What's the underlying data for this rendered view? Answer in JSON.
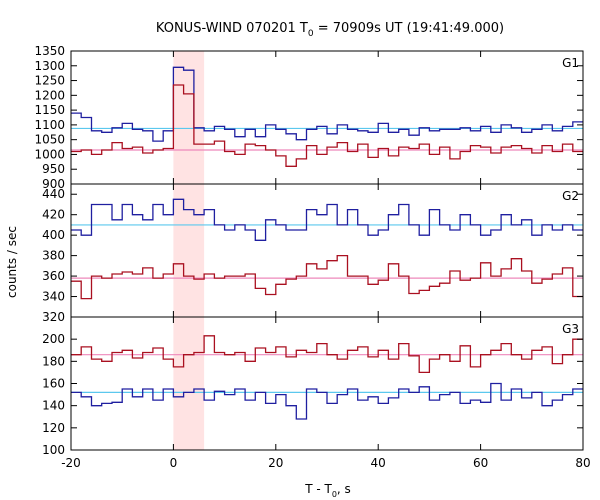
{
  "chart_data": {
    "type": "line",
    "title": {
      "prefix": "KONUS-WIND 070201 T",
      "sub": "0",
      "suffix": " = 70909s UT (19:41:49.000)"
    },
    "ylabel": "counts / sec",
    "xlabel": {
      "prefix": "T - T",
      "sub": "0",
      "suffix": ", s"
    },
    "xlim": [
      -20,
      80
    ],
    "xticks": [
      -20,
      0,
      20,
      40,
      60,
      80
    ],
    "highlight": {
      "x": [
        0,
        6
      ],
      "color": "#ffe3e3"
    },
    "panels": [
      {
        "name": "G1",
        "ylim": [
          900,
          1350
        ],
        "yticks": [
          900,
          950,
          1000,
          1050,
          1100,
          1150,
          1200,
          1250,
          1300,
          1350
        ],
        "series": [
          {
            "color": "#1f1fa0",
            "x": [
              -20,
              -18,
              -16,
              -14,
              -12,
              -10,
              -8,
              -6,
              -4,
              -2,
              0,
              2,
              4,
              6,
              8,
              10,
              12,
              14,
              16,
              18,
              20,
              22,
              24,
              26,
              28,
              30,
              32,
              34,
              36,
              38,
              40,
              42,
              44,
              46,
              48,
              50,
              52,
              54,
              56,
              58,
              60,
              62,
              64,
              66,
              68,
              70,
              72,
              74,
              76,
              78,
              80
            ],
            "y": [
              1140,
              1125,
              1080,
              1075,
              1090,
              1105,
              1085,
              1080,
              1045,
              1080,
              1295,
              1285,
              1090,
              1080,
              1095,
              1085,
              1060,
              1085,
              1060,
              1100,
              1085,
              1070,
              1050,
              1085,
              1095,
              1070,
              1100,
              1085,
              1080,
              1075,
              1105,
              1075,
              1085,
              1065,
              1090,
              1080,
              1085,
              1085,
              1090,
              1080,
              1095,
              1075,
              1100,
              1090,
              1075,
              1085,
              1100,
              1080,
              1095,
              1110,
              1110
            ]
          },
          {
            "color": "#aa1020",
            "x": [
              -20,
              -18,
              -16,
              -14,
              -12,
              -10,
              -8,
              -6,
              -4,
              -2,
              0,
              2,
              4,
              6,
              8,
              10,
              12,
              14,
              16,
              18,
              20,
              22,
              24,
              26,
              28,
              30,
              32,
              34,
              36,
              38,
              40,
              42,
              44,
              46,
              48,
              50,
              52,
              54,
              56,
              58,
              60,
              62,
              64,
              66,
              68,
              70,
              72,
              74,
              76,
              78,
              80
            ],
            "y": [
              1010,
              1015,
              1000,
              1015,
              1040,
              1020,
              1025,
              1005,
              1015,
              1020,
              1235,
              1205,
              1035,
              1035,
              1045,
              1010,
              1000,
              1035,
              1030,
              1015,
              995,
              960,
              985,
              1030,
              1000,
              1025,
              1040,
              1010,
              1035,
              990,
              1020,
              995,
              1025,
              1020,
              1035,
              1000,
              1025,
              985,
              1010,
              1030,
              1025,
              1005,
              1025,
              1030,
              1020,
              1005,
              1030,
              1010,
              1035,
              1010,
              1010
            ]
          }
        ],
        "refs": [
          {
            "y": 1088,
            "color": "#5bc8ee"
          },
          {
            "y": 1015,
            "color": "#ee88bb"
          }
        ]
      },
      {
        "name": "G2",
        "ylim": [
          320,
          450
        ],
        "yticks": [
          320,
          340,
          360,
          380,
          400,
          420,
          440
        ],
        "series": [
          {
            "color": "#1f1fa0",
            "x": [
              -20,
              -18,
              -16,
              -14,
              -12,
              -10,
              -8,
              -6,
              -4,
              -2,
              0,
              2,
              4,
              6,
              8,
              10,
              12,
              14,
              16,
              18,
              20,
              22,
              24,
              26,
              28,
              30,
              32,
              34,
              36,
              38,
              40,
              42,
              44,
              46,
              48,
              50,
              52,
              54,
              56,
              58,
              60,
              62,
              64,
              66,
              68,
              70,
              72,
              74,
              76,
              78,
              80
            ],
            "y": [
              405,
              400,
              430,
              430,
              415,
              430,
              420,
              415,
              430,
              420,
              435,
              425,
              420,
              425,
              410,
              405,
              410,
              405,
              395,
              415,
              410,
              405,
              405,
              425,
              420,
              430,
              410,
              425,
              410,
              400,
              405,
              420,
              430,
              410,
              400,
              425,
              410,
              405,
              420,
              410,
              400,
              405,
              420,
              410,
              415,
              400,
              410,
              405,
              410,
              405,
              405
            ]
          },
          {
            "color": "#aa1020",
            "x": [
              -20,
              -18,
              -16,
              -14,
              -12,
              -10,
              -8,
              -6,
              -4,
              -2,
              0,
              2,
              4,
              6,
              8,
              10,
              12,
              14,
              16,
              18,
              20,
              22,
              24,
              26,
              28,
              30,
              32,
              34,
              36,
              38,
              40,
              42,
              44,
              46,
              48,
              50,
              52,
              54,
              56,
              58,
              60,
              62,
              64,
              66,
              68,
              70,
              72,
              74,
              76,
              78,
              80
            ],
            "y": [
              355,
              338,
              360,
              358,
              362,
              364,
              362,
              368,
              358,
              362,
              372,
              360,
              357,
              362,
              358,
              360,
              360,
              362,
              348,
              342,
              352,
              357,
              360,
              372,
              367,
              375,
              380,
              360,
              360,
              352,
              356,
              372,
              360,
              343,
              346,
              350,
              353,
              365,
              356,
              358,
              373,
              360,
              367,
              377,
              365,
              353,
              357,
              362,
              368,
              340,
              340
            ]
          }
        ],
        "refs": [
          {
            "y": 410,
            "color": "#5bc8ee"
          },
          {
            "y": 358,
            "color": "#ee88bb"
          }
        ]
      },
      {
        "name": "G3",
        "ylim": [
          100,
          220
        ],
        "yticks": [
          100,
          120,
          140,
          160,
          180,
          200
        ],
        "series": [
          {
            "color": "#1f1fa0",
            "x": [
              -20,
              -18,
              -16,
              -14,
              -12,
              -10,
              -8,
              -6,
              -4,
              -2,
              0,
              2,
              4,
              6,
              8,
              10,
              12,
              14,
              16,
              18,
              20,
              22,
              24,
              26,
              28,
              30,
              32,
              34,
              36,
              38,
              40,
              42,
              44,
              46,
              48,
              50,
              52,
              54,
              56,
              58,
              60,
              62,
              64,
              66,
              68,
              70,
              72,
              74,
              76,
              78,
              80
            ],
            "y": [
              152,
              148,
              140,
              142,
              143,
              155,
              148,
              155,
              145,
              155,
              148,
              152,
              155,
              145,
              153,
              150,
              155,
              145,
              152,
              142,
              150,
              140,
              128,
              155,
              152,
              142,
              150,
              155,
              145,
              148,
              142,
              147,
              155,
              152,
              157,
              145,
              150,
              152,
              142,
              145,
              143,
              160,
              145,
              155,
              147,
              152,
              140,
              145,
              150,
              155,
              150
            ]
          },
          {
            "color": "#aa1020",
            "x": [
              -20,
              -18,
              -16,
              -14,
              -12,
              -10,
              -8,
              -6,
              -4,
              -2,
              0,
              2,
              4,
              6,
              8,
              10,
              12,
              14,
              16,
              18,
              20,
              22,
              24,
              26,
              28,
              30,
              32,
              34,
              36,
              38,
              40,
              42,
              44,
              46,
              48,
              50,
              52,
              54,
              56,
              58,
              60,
              62,
              64,
              66,
              68,
              70,
              72,
              74,
              76,
              78,
              80
            ],
            "y": [
              186,
              193,
              182,
              180,
              188,
              190,
              183,
              188,
              192,
              182,
              175,
              186,
              188,
              203,
              188,
              186,
              188,
              180,
              192,
              188,
              193,
              184,
              190,
              188,
              196,
              186,
              182,
              190,
              193,
              184,
              190,
              182,
              196,
              185,
              170,
              182,
              186,
              180,
              194,
              175,
              186,
              190,
              196,
              186,
              182,
              190,
              193,
              178,
              186,
              200,
              185
            ]
          }
        ],
        "refs": [
          {
            "y": 152,
            "color": "#5bc8ee"
          },
          {
            "y": 186,
            "color": "#ee88bb"
          }
        ]
      }
    ]
  }
}
